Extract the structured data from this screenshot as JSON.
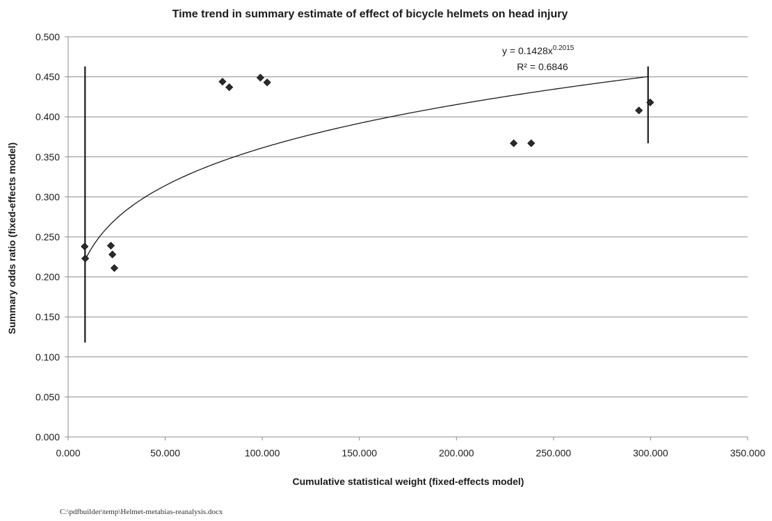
{
  "chart_data": {
    "type": "scatter",
    "title": "Time trend in summary estimate of effect of bicycle helmets on head injury",
    "xlabel": "Cumulative statistical weight (fixed-effects model)",
    "ylabel": "Summary odds ratio (fixed-effects model)",
    "xlim": [
      0,
      350000
    ],
    "ylim": [
      0,
      0.5
    ],
    "x_ticks": [
      0,
      50000,
      100000,
      150000,
      200000,
      250000,
      300000,
      350000
    ],
    "x_tick_labels": [
      "0.000",
      "50.000",
      "100.000",
      "150.000",
      "200.000",
      "250.000",
      "300.000",
      "350.000"
    ],
    "y_ticks": [
      0,
      0.05,
      0.1,
      0.15,
      0.2,
      0.25,
      0.3,
      0.35,
      0.4,
      0.45,
      0.5
    ],
    "y_tick_labels": [
      "0.000",
      "0.050",
      "0.100",
      "0.150",
      "0.200",
      "0.250",
      "0.300",
      "0.350",
      "0.400",
      "0.450",
      "0.500"
    ],
    "grid": "horizontal",
    "legend": "none",
    "points": [
      {
        "x": 8500,
        "y": 0.238
      },
      {
        "x": 8800,
        "y": 0.223
      },
      {
        "x": 22000,
        "y": 0.239
      },
      {
        "x": 22800,
        "y": 0.228
      },
      {
        "x": 23800,
        "y": 0.211
      },
      {
        "x": 79500,
        "y": 0.444
      },
      {
        "x": 83000,
        "y": 0.437
      },
      {
        "x": 99000,
        "y": 0.449
      },
      {
        "x": 102500,
        "y": 0.443
      },
      {
        "x": 229500,
        "y": 0.367
      },
      {
        "x": 238500,
        "y": 0.367
      },
      {
        "x": 294000,
        "y": 0.408
      },
      {
        "x": 299800,
        "y": 0.418
      }
    ],
    "vertical_bars": [
      {
        "x": 8700,
        "y_low": 0.118,
        "y_high": 0.463
      },
      {
        "x": 298700,
        "y_low": 0.367,
        "y_high": 0.463
      }
    ],
    "trendline": {
      "type": "power",
      "coefficient": 0.1428,
      "exponent": 0.2015,
      "x_range": [
        8700,
        299000
      ],
      "equation_prefix": "y = 0.1428x",
      "equation_exponent": "0.2015",
      "r2_label": "R² = 0.6846"
    },
    "colors": {
      "marker": "#2b2b2b",
      "line": "#1a1a1a",
      "grid": "#8c8c8c",
      "axis": "#8c8c8c"
    }
  },
  "footer_path": "C:\\pdfbuilder\\temp\\Helmet-metabias-reanalysis.docx"
}
